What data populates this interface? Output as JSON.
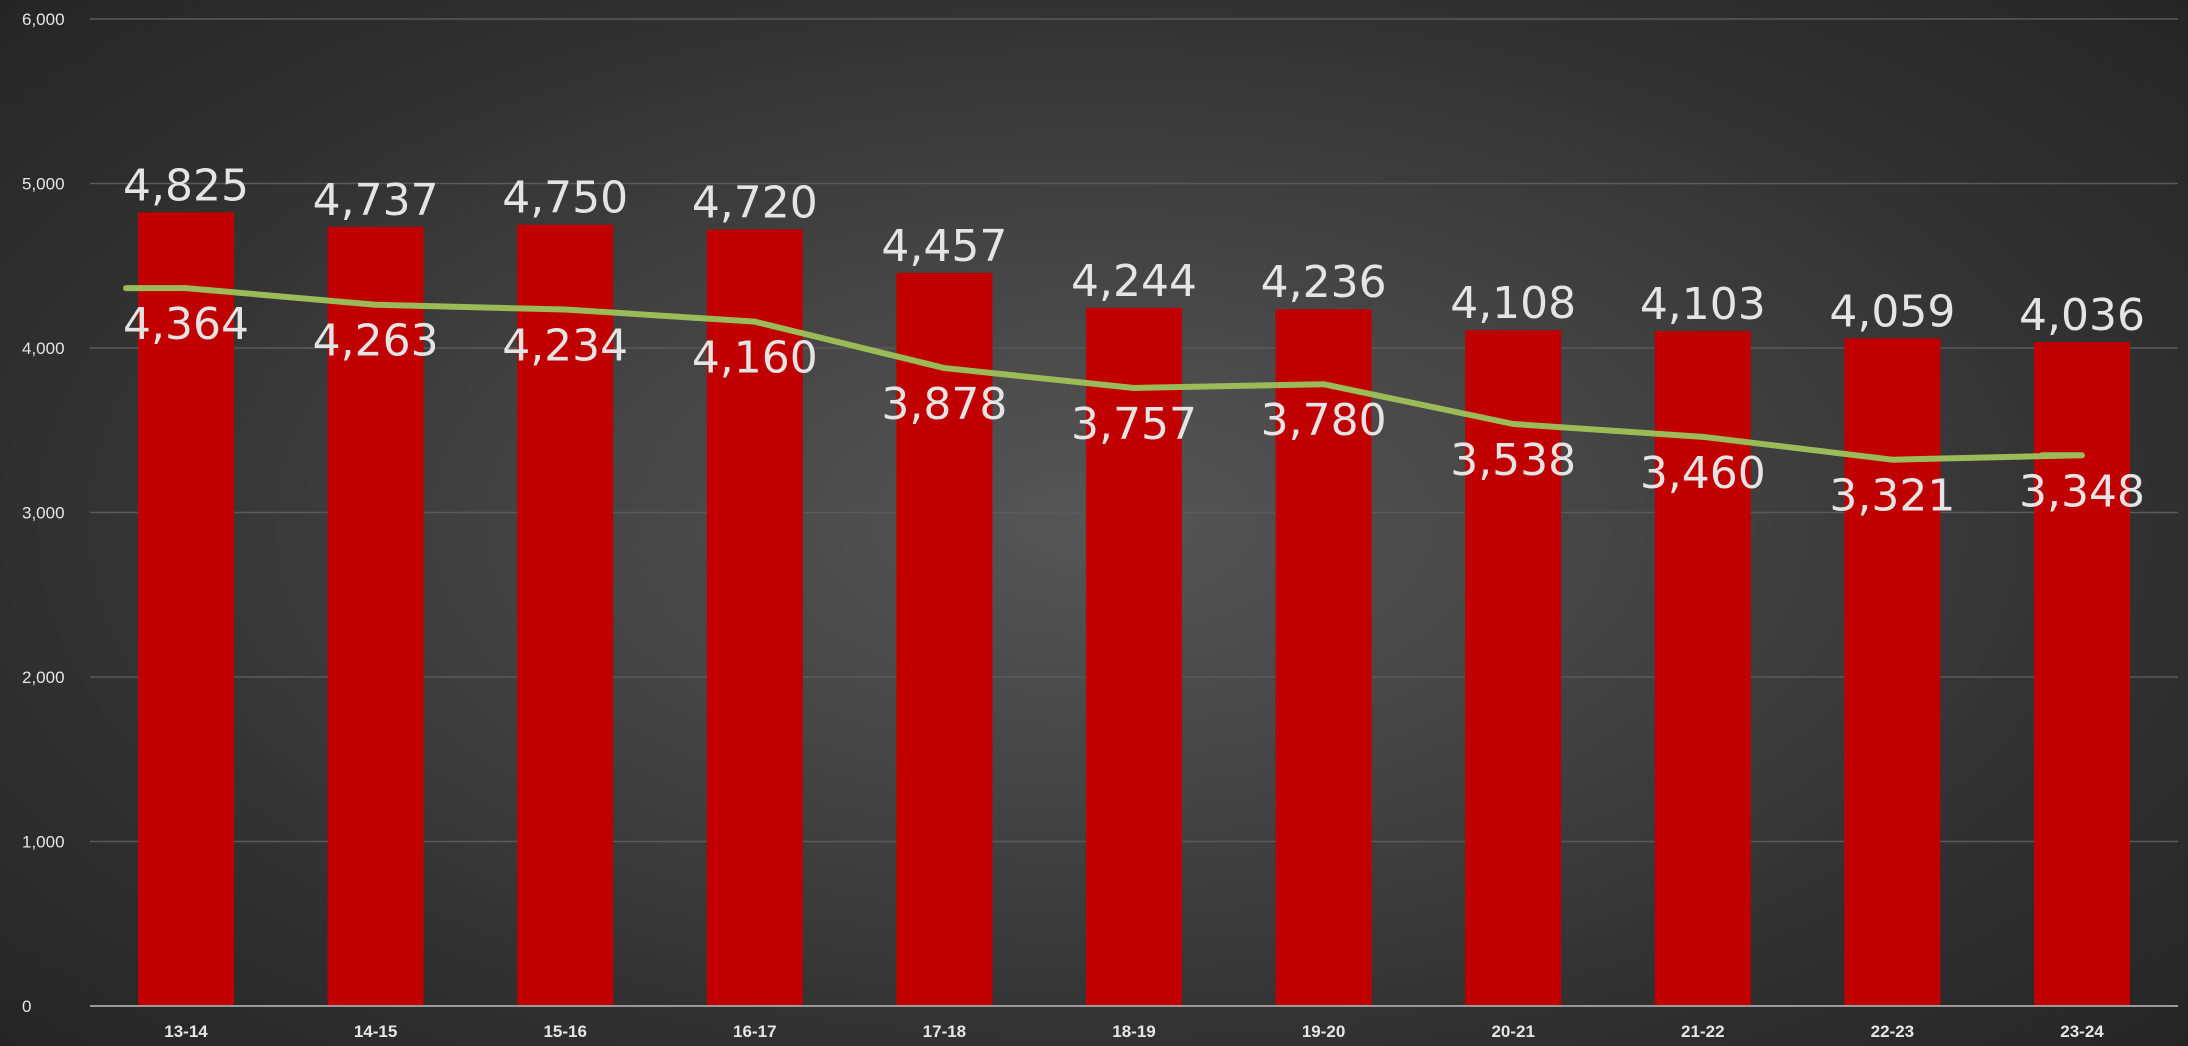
{
  "chart_data": {
    "type": "bar",
    "categories": [
      "13-14",
      "14-15",
      "15-16",
      "16-17",
      "17-18",
      "18-19",
      "19-20",
      "20-21",
      "21-22",
      "22-23",
      "23-24"
    ],
    "series": [
      {
        "type": "bar",
        "values": [
          4825,
          4737,
          4750,
          4720,
          4457,
          4244,
          4236,
          4108,
          4103,
          4059,
          4036
        ],
        "labels": [
          "4,825",
          "4,737",
          "4,750",
          "4,720",
          "4,457",
          "4,244",
          "4,236",
          "4,108",
          "4,103",
          "4,059",
          "4,036"
        ],
        "color": "#c00000"
      },
      {
        "type": "line",
        "values": [
          4364,
          4263,
          4234,
          4160,
          3878,
          3757,
          3780,
          3538,
          3460,
          3321,
          3348
        ],
        "labels": [
          "4,364",
          "4,263",
          "4,234",
          "4,160",
          "3,878",
          "3,757",
          "3,780",
          "3,538",
          "3,460",
          "3,321",
          "3,348"
        ],
        "color": "#9bbb59"
      }
    ],
    "ylim": [
      0,
      6000
    ],
    "yticks": [
      0,
      1000,
      2000,
      3000,
      4000,
      5000,
      6000
    ],
    "ytick_labels": [
      "0",
      "1,000",
      "2,000",
      "3,000",
      "4,000",
      "5,000",
      "6,000"
    ],
    "grid": true,
    "legend": "none",
    "title": "",
    "xlabel": "",
    "ylabel": "",
    "background": "#3c3c3c"
  }
}
